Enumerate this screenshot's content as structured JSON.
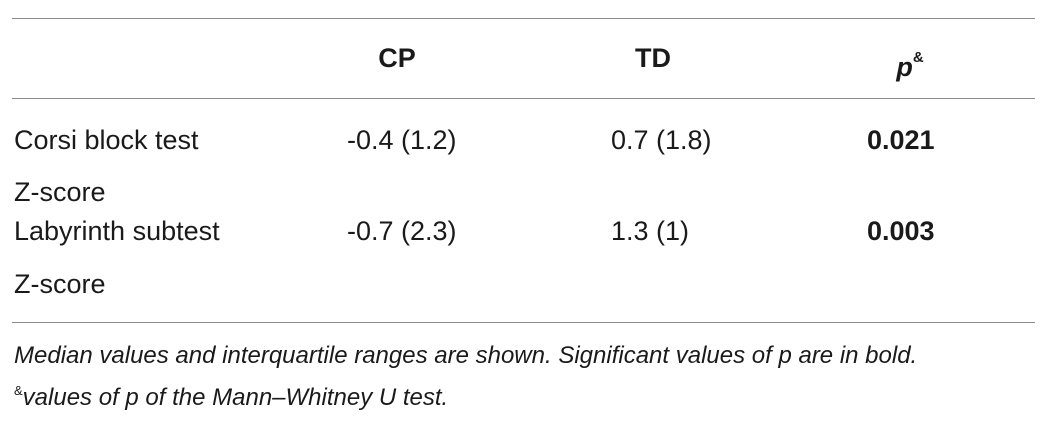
{
  "table": {
    "columns": [
      "",
      "CP",
      "TD",
      "p"
    ],
    "p_superscript": "&",
    "rows": [
      {
        "label_line1": "Corsi block test",
        "label_line2": "Z-score",
        "cp": "-0.4 (1.2)",
        "td": "0.7 (1.8)",
        "p": "0.021",
        "p_bold": true
      },
      {
        "label_line1": "Labyrinth subtest",
        "label_line2": "Z-score",
        "cp": "-0.7 (2.3)",
        "td": "1.3 (1)",
        "p": "0.003",
        "p_bold": true
      }
    ]
  },
  "footnote": {
    "line1": "Median values and interquartile ranges are shown. Significant values of p are in bold.",
    "line2_marker": "&",
    "line2": "values of p of the Mann–Whitney U test."
  }
}
